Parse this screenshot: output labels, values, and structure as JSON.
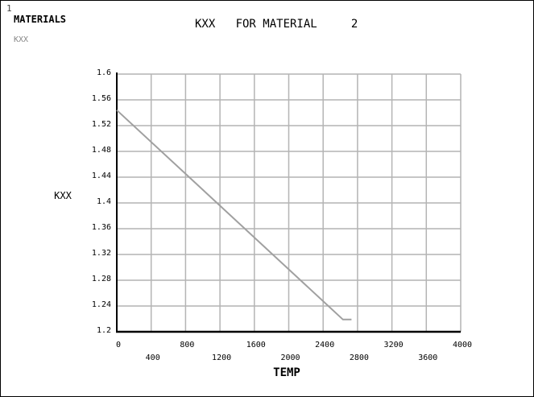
{
  "header": {
    "corner_number": "1",
    "title": "MATERIALS",
    "subtitle": "KXX"
  },
  "chart_data": {
    "type": "line",
    "title": "KXX   FOR MATERIAL     2",
    "xlabel": "TEMP",
    "ylabel": "KXX",
    "xlim": [
      0,
      4000
    ],
    "ylim": [
      1.2,
      1.6
    ],
    "x_ticks": [
      0,
      400,
      800,
      1200,
      1600,
      2000,
      2400,
      2800,
      3200,
      3600,
      4000
    ],
    "x_tick_labels": [
      "0",
      "400",
      "800",
      "1200",
      "1600",
      "2000",
      "2400",
      "2800",
      "3200",
      "3600",
      "4000"
    ],
    "y_ticks": [
      1.2,
      1.24,
      1.28,
      1.32,
      1.36,
      1.4,
      1.44,
      1.48,
      1.52,
      1.56,
      1.6
    ],
    "y_tick_labels": [
      "1.2",
      "1.24",
      "1.28",
      "1.32",
      "1.36",
      "1.4",
      "1.44",
      "1.48",
      "1.52",
      "1.56",
      "1.6"
    ],
    "grid": true,
    "series": [
      {
        "color": "#a0a0a0",
        "x": [
          0,
          2630,
          2730
        ],
        "y": [
          1.544,
          1.219,
          1.219
        ]
      }
    ]
  }
}
